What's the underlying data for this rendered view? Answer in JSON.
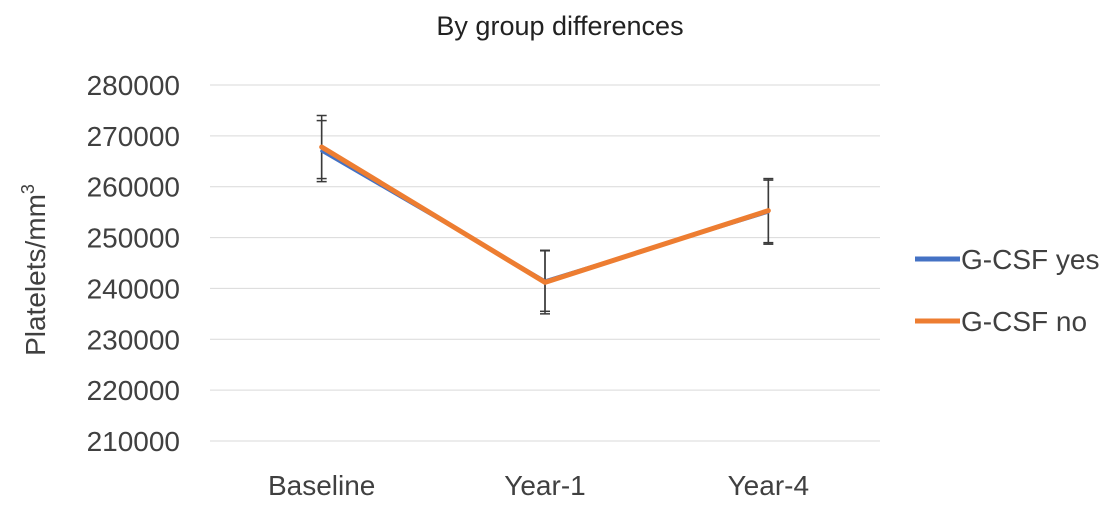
{
  "chart_data": {
    "type": "line",
    "title": "By group differences",
    "xlabel": "",
    "ylabel": "Platelets/mm",
    "ylabel_superscript": "3",
    "categories": [
      "Baseline",
      "Year-1",
      "Year-4"
    ],
    "ylim": [
      210000,
      280000
    ],
    "yticks": [
      210000,
      220000,
      230000,
      240000,
      250000,
      260000,
      270000,
      280000
    ],
    "grid": true,
    "legend_position": "right",
    "series": [
      {
        "name": "G-CSF yes",
        "color": "#4472C4",
        "values": [
          267000,
          241500,
          255000
        ],
        "error": [
          6000,
          6000,
          6300
        ]
      },
      {
        "name": "G-CSF no",
        "color": "#ED7D31",
        "values": [
          267800,
          241200,
          255300
        ],
        "error": [
          6200,
          6200,
          6300
        ]
      }
    ]
  }
}
